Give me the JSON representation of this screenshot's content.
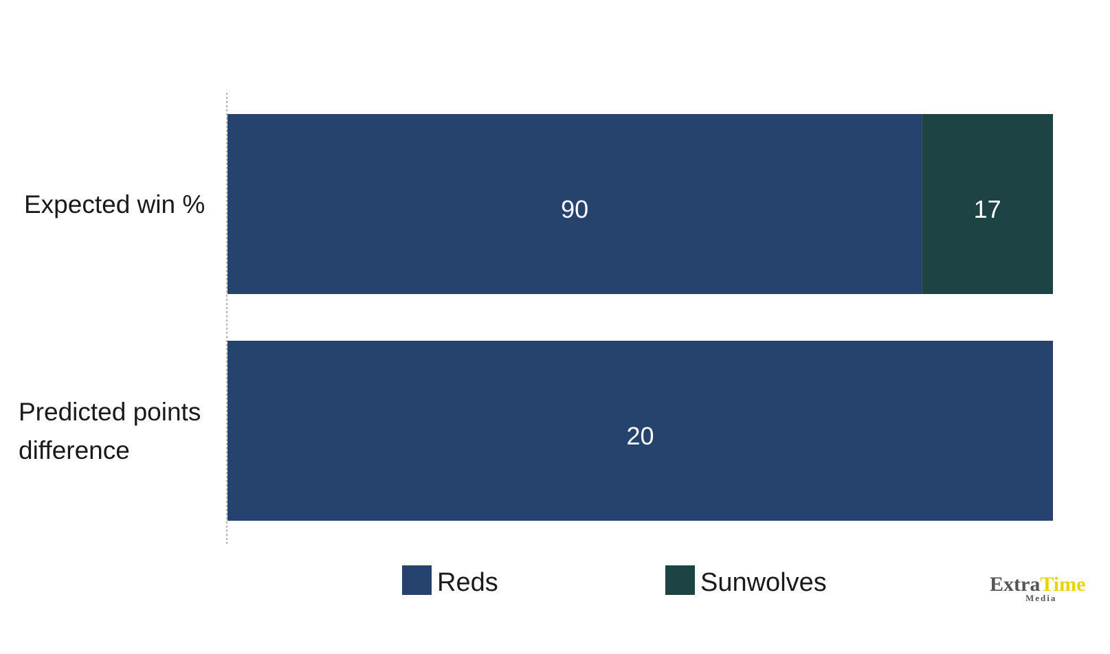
{
  "chart_data": {
    "type": "bar",
    "orientation": "horizontal",
    "stacked": true,
    "normalized": true,
    "categories": [
      "Expected win %",
      "Predicted points difference"
    ],
    "series": [
      {
        "name": "Reds",
        "color": "#26436e",
        "values": [
          90,
          20
        ]
      },
      {
        "name": "Sunwolves",
        "color": "#1d4344",
        "values": [
          17,
          0
        ]
      }
    ],
    "title": "",
    "xlabel": "",
    "ylabel": "",
    "grid": false,
    "legend_position": "bottom"
  },
  "logo": {
    "text_a": "Extra",
    "text_b": "Time",
    "text_c": "Media",
    "color_a": "#555555",
    "color_b": "#e8d400"
  }
}
